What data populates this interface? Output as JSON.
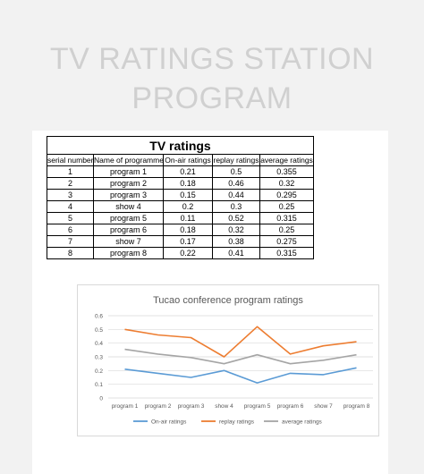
{
  "page": {
    "title_line1": "TV RATINGS STATION",
    "title_line2": "PROGRAM"
  },
  "table": {
    "title": "TV ratings",
    "headers": [
      "serial number",
      "Name of programme",
      "On-air ratings",
      "replay ratings",
      "average ratings"
    ],
    "rows": [
      [
        "1",
        "program 1",
        "0.21",
        "0.5",
        "0.355"
      ],
      [
        "2",
        "program 2",
        "0.18",
        "0.46",
        "0.32"
      ],
      [
        "3",
        "program 3",
        "0.15",
        "0.44",
        "0.295"
      ],
      [
        "4",
        "show 4",
        "0.2",
        "0.3",
        "0.25"
      ],
      [
        "5",
        "program 5",
        "0.11",
        "0.52",
        "0.315"
      ],
      [
        "6",
        "program 6",
        "0.18",
        "0.32",
        "0.25"
      ],
      [
        "7",
        "show 7",
        "0.17",
        "0.38",
        "0.275"
      ],
      [
        "8",
        "program 8",
        "0.22",
        "0.41",
        "0.315"
      ]
    ]
  },
  "chart_data": {
    "type": "line",
    "title": "Tucao conference program ratings",
    "categories": [
      "program 1",
      "program 2",
      "program 3",
      "show 4",
      "program 5",
      "program 6",
      "show 7",
      "program 8"
    ],
    "series": [
      {
        "name": "On-air ratings",
        "color": "#5b9bd5",
        "values": [
          0.21,
          0.18,
          0.15,
          0.2,
          0.11,
          0.18,
          0.17,
          0.22
        ]
      },
      {
        "name": "replay ratings",
        "color": "#ed7d31",
        "values": [
          0.5,
          0.46,
          0.44,
          0.3,
          0.52,
          0.32,
          0.38,
          0.41
        ]
      },
      {
        "name": "average ratings",
        "color": "#a5a5a5",
        "values": [
          0.355,
          0.32,
          0.295,
          0.25,
          0.315,
          0.25,
          0.275,
          0.315
        ]
      }
    ],
    "yticks": [
      "0",
      "0.1",
      "0.2",
      "0.3",
      "0.4",
      "0.5",
      "0.6"
    ],
    "ylim": [
      0,
      0.6
    ],
    "grid": true,
    "legend": "bottom"
  }
}
